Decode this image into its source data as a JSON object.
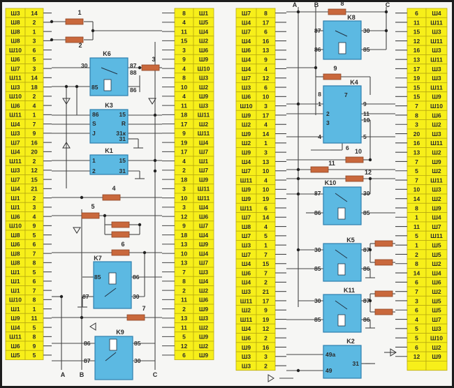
{
  "colors": {
    "connector_fill": "#f7ef1a",
    "connector_stroke": "#b9aa10",
    "relay_fill": "#5cb9e2",
    "relay_stroke": "#2e7fae",
    "fuse_fill": "#c9683c",
    "wire": "#444444"
  },
  "connectors": {
    "left_outer": [
      [
        "Ш3",
        "14"
      ],
      [
        "Ш8",
        "2"
      ],
      [
        "Ш8",
        "1"
      ],
      [
        "Ш8",
        "3"
      ],
      [
        "Ш10",
        "6"
      ],
      [
        "Ш6",
        "5"
      ],
      [
        "Ш7",
        "3"
      ],
      [
        "Ш11",
        "14"
      ],
      [
        "Ш3",
        "18"
      ],
      [
        "Ш10",
        "2"
      ],
      [
        "Ш6",
        "4"
      ],
      [
        "Ш11",
        "1"
      ],
      [
        "Ш4",
        "7"
      ],
      [
        "Ш3",
        "9"
      ],
      [
        "Ш7",
        "16"
      ],
      [
        "Ш4",
        "20"
      ],
      [
        "Ш11",
        "2"
      ],
      [
        "Ш3",
        "12"
      ],
      [
        "Ш7",
        "15"
      ],
      [
        "Ш4",
        "21"
      ],
      [
        "Ш1",
        "2"
      ],
      [
        "Ш1",
        "3"
      ],
      [
        "Ш6",
        "4"
      ],
      [
        "Ш10",
        "9"
      ],
      [
        "Ш8",
        "5"
      ],
      [
        "Ш6",
        "6"
      ],
      [
        "Ш8",
        "7"
      ],
      [
        "Ш8",
        "8"
      ],
      [
        "Ш1",
        "5"
      ],
      [
        "Ш1",
        "6"
      ],
      [
        "Ш1",
        "7"
      ],
      [
        "Ш10",
        "8"
      ],
      [
        "Ш1",
        "1"
      ],
      [
        "Ш9",
        "11"
      ],
      [
        "Ш4",
        "5"
      ],
      [
        "Ш11",
        "8"
      ],
      [
        "Ш6",
        "9"
      ],
      [
        "Ш5",
        "5"
      ]
    ],
    "left_inner": [
      [
        "8",
        "Ш1"
      ],
      [
        "4",
        "Ш5"
      ],
      [
        "11",
        "Ш4"
      ],
      [
        "15",
        "Ш2"
      ],
      [
        "3",
        "Ш6"
      ],
      [
        "9",
        "Ш9"
      ],
      [
        "4",
        "Ш10"
      ],
      [
        "8",
        "Ш3"
      ],
      [
        "10",
        "Ш2"
      ],
      [
        "4",
        "Ш9"
      ],
      [
        "11",
        "Ш3"
      ],
      [
        "18",
        "Ш11"
      ],
      [
        "17",
        "Ш2"
      ],
      [
        "9",
        "Ш11"
      ],
      [
        "19",
        "Ш4"
      ],
      [
        "17",
        "Ш7"
      ],
      [
        "4",
        "Ш1"
      ],
      [
        "2",
        "Ш7"
      ],
      [
        "18",
        "Ш9"
      ],
      [
        "3",
        "Ш11"
      ],
      [
        "10",
        "Ш11"
      ],
      [
        "3",
        "Ш4"
      ],
      [
        "12",
        "Ш6"
      ],
      [
        "9",
        "Ш7"
      ],
      [
        "18",
        "Ш4"
      ],
      [
        "13",
        "Ш9"
      ],
      [
        "10",
        "Ш4"
      ],
      [
        "13",
        "Ш7"
      ],
      [
        "7",
        "Ш3"
      ],
      [
        "8",
        "Ш4"
      ],
      [
        "2",
        "Ш2"
      ],
      [
        "11",
        "Ш6"
      ],
      [
        "2",
        "Ш9"
      ],
      [
        "13",
        "Ш3"
      ],
      [
        "11",
        "Ш2"
      ],
      [
        "5",
        "Ш9"
      ],
      [
        "12",
        "Ш2"
      ],
      [
        "6",
        "Ш9"
      ]
    ],
    "right_inner": [
      [
        "Ш7",
        "8"
      ],
      [
        "Ш4",
        "17"
      ],
      [
        "Ш7",
        "6"
      ],
      [
        "Ш4",
        "16"
      ],
      [
        "Ш6",
        "13"
      ],
      [
        "Ш4",
        "9"
      ],
      [
        "Ш4",
        "4"
      ],
      [
        "Ш7",
        "12"
      ],
      [
        "Ш3",
        "6"
      ],
      [
        "Ш6",
        "10"
      ],
      [
        "Ш10",
        "3"
      ],
      [
        "Ш9",
        "17"
      ],
      [
        "Ш2",
        "4"
      ],
      [
        "Ш9",
        "14"
      ],
      [
        "Ш2",
        "1"
      ],
      [
        "Ш9",
        "3"
      ],
      [
        "Ш4",
        "13"
      ],
      [
        "Ш7",
        "10"
      ],
      [
        "Ш11",
        "4"
      ],
      [
        "Ш9",
        "10"
      ],
      [
        "Ш9",
        "19"
      ],
      [
        "Ш11",
        "6"
      ],
      [
        "Ш7",
        "14"
      ],
      [
        "Ш8",
        "4"
      ],
      [
        "Ш7",
        "5"
      ],
      [
        "Ш3",
        "1"
      ],
      [
        "Ш7",
        "7"
      ],
      [
        "Ш4",
        "15"
      ],
      [
        "Ш6",
        "7"
      ],
      [
        "Ш4",
        "2"
      ],
      [
        "Ш3",
        "21"
      ],
      [
        "Ш11",
        "17"
      ],
      [
        "Ш2",
        "9"
      ],
      [
        "Ш11",
        "19"
      ],
      [
        "Ш4",
        "12"
      ],
      [
        "Ш6",
        "2"
      ],
      [
        "Ш9",
        "16"
      ],
      [
        "Ш3",
        "3"
      ],
      [
        "Ш3",
        "2"
      ]
    ],
    "right_outer": [
      [
        "6",
        "Ш4"
      ],
      [
        "11",
        "Ш11"
      ],
      [
        "15",
        "Ш3"
      ],
      [
        "12",
        "Ш11"
      ],
      [
        "16",
        "Ш3"
      ],
      [
        "13",
        "Ш11"
      ],
      [
        "17",
        "Ш3"
      ],
      [
        "19",
        "Ш3"
      ],
      [
        "15",
        "Ш11"
      ],
      [
        "15",
        "Ш9"
      ],
      [
        "7",
        "Ш10"
      ],
      [
        "8",
        "Ш6"
      ],
      [
        "3",
        "Ш2"
      ],
      [
        "20",
        "Ш3"
      ],
      [
        "16",
        "Ш11"
      ],
      [
        "13",
        "Ш2"
      ],
      [
        "7",
        "Ш9"
      ],
      [
        "5",
        "Ш2"
      ],
      [
        "7",
        "Ш11"
      ],
      [
        "10",
        "Ш3"
      ],
      [
        "14",
        "Ш2"
      ],
      [
        "8",
        "Ш9"
      ],
      [
        "1",
        "Ш4"
      ],
      [
        "11",
        "Ш7"
      ],
      [
        "5",
        "Ш11"
      ],
      [
        "1",
        "Ш5"
      ],
      [
        "2",
        "Ш5"
      ],
      [
        "8",
        "Ш2"
      ],
      [
        "14",
        "Ш4"
      ],
      [
        "6",
        "Ш6"
      ],
      [
        "7",
        "Ш2"
      ],
      [
        "3",
        "Ш5"
      ],
      [
        "6",
        "Ш5"
      ],
      [
        "4",
        "Ш7"
      ],
      [
        "5",
        "Ш3"
      ],
      [
        "5",
        "Ш10"
      ],
      [
        "6",
        "Ш2"
      ],
      [
        "12",
        "Ш9"
      ],
      [
        "",
        ""
      ]
    ]
  },
  "relays": {
    "k6": {
      "label": "K6",
      "pins": [
        "30",
        "87",
        "88",
        "85",
        "86"
      ]
    },
    "k3": {
      "label": "K3",
      "pins": [
        "86",
        "15",
        "S",
        "R",
        "J",
        "31к",
        "31"
      ]
    },
    "k1": {
      "label": "K1",
      "pins": [
        "1",
        "15",
        "2",
        "31"
      ]
    },
    "k7": {
      "label": "K7",
      "pins": [
        "85",
        "86",
        "87",
        "30"
      ]
    },
    "k9": {
      "label": "K9",
      "pins": [
        "86",
        "85",
        "87",
        "30"
      ]
    },
    "k8": {
      "label": "K8",
      "pins": [
        "87",
        "30",
        "86",
        "85"
      ]
    },
    "k4": {
      "label": "K4",
      "pins": [
        "8",
        "1",
        "2",
        "3",
        "4",
        "7",
        "9",
        "11",
        "10",
        "5",
        "6"
      ]
    },
    "k10": {
      "label": "K10",
      "pins": [
        "87",
        "30",
        "86",
        "85"
      ]
    },
    "k5": {
      "label": "K5",
      "pins": [
        "30",
        "87",
        "85",
        "86"
      ]
    },
    "k11": {
      "label": "K11",
      "pins": [
        "30",
        "87",
        "85",
        "86"
      ]
    },
    "k2": {
      "label": "K2",
      "pins": [
        "49a",
        "31",
        "49"
      ]
    }
  },
  "fuses": [
    "1",
    "2",
    "3",
    "4",
    "5",
    "",
    "",
    "6",
    "7",
    "8",
    "9",
    "10",
    "11",
    "12",
    "",
    "",
    "",
    ""
  ],
  "buses": [
    "A",
    "B",
    "C",
    "A",
    "B",
    "C"
  ]
}
